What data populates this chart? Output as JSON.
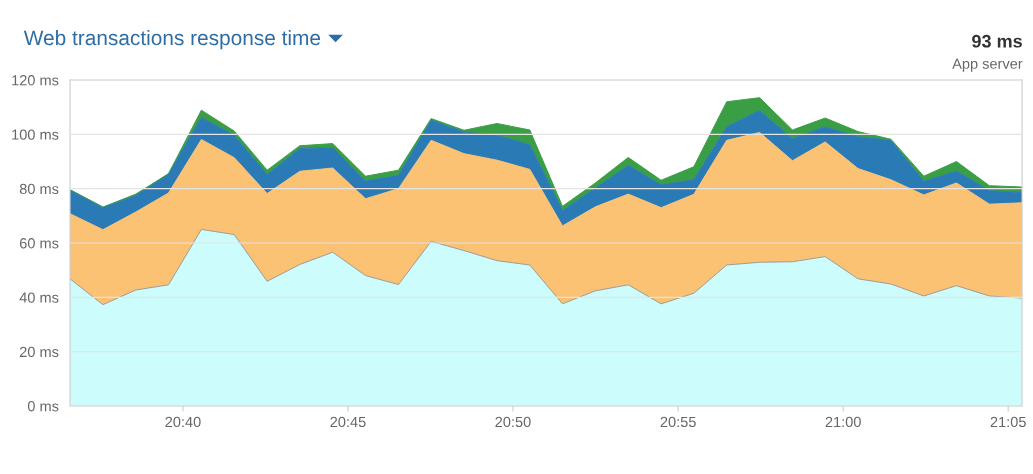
{
  "chart_data": {
    "type": "area",
    "title": "Web transactions response time",
    "stacked": true,
    "grid": "y",
    "legend": false,
    "annotations": [
      "93 ms",
      "App server"
    ],
    "x": [
      20.6097,
      20.6263,
      20.6429,
      20.6594,
      20.676,
      20.6926,
      20.7092,
      20.7257,
      20.7423,
      20.7589,
      20.7755,
      20.792,
      20.8086,
      20.8252,
      20.8418,
      20.8583,
      20.8749,
      20.8915,
      20.9081,
      20.9246,
      20.9412,
      20.9578,
      20.9744,
      20.9909,
      21.0075,
      21.0241,
      21.0407,
      21.0572,
      21.0738,
      21.0903
    ],
    "xlim": [
      20.6097,
      21.0903
    ],
    "xticks": [
      {
        "value": 20.6667,
        "label": "20:40"
      },
      {
        "value": 20.75,
        "label": "20:45"
      },
      {
        "value": 20.8333,
        "label": "20:50"
      },
      {
        "value": 20.9167,
        "label": "20:55"
      },
      {
        "value": 21.0,
        "label": "21:00"
      },
      {
        "value": 21.0833,
        "label": "21:05"
      }
    ],
    "ylim": [
      0,
      120
    ],
    "yticks": [
      {
        "value": 0,
        "label": "0 ms"
      },
      {
        "value": 20,
        "label": "20 ms"
      },
      {
        "value": 40,
        "label": "40 ms"
      },
      {
        "value": 60,
        "label": "60 ms"
      },
      {
        "value": 80,
        "label": "80 ms"
      },
      {
        "value": 100,
        "label": "100 ms"
      },
      {
        "value": 120,
        "label": "120 ms"
      }
    ],
    "series": [
      {
        "color": "#ccfcfc",
        "values": [
          46.8,
          37.3,
          42.7,
          44.6,
          65.0,
          63.1,
          45.9,
          52.1,
          56.6,
          48.0,
          44.7,
          60.6,
          57.2,
          53.5,
          51.9,
          37.6,
          42.4,
          44.6,
          37.6,
          41.5,
          51.9,
          52.9,
          53.1,
          55.0,
          46.8,
          44.9,
          40.5,
          44.3,
          40.5,
          39.7
        ]
      },
      {
        "color": "#fbc274",
        "values": [
          24.0,
          27.6,
          28.7,
          33.8,
          33.1,
          28.3,
          32.3,
          34.3,
          31.0,
          28.3,
          35.3,
          37.2,
          35.7,
          37.0,
          35.2,
          28.7,
          30.9,
          33.4,
          35.4,
          36.4,
          45.9,
          47.8,
          37.2,
          42.2,
          40.6,
          38.4,
          37.2,
          37.8,
          33.8,
          35.1
        ]
      },
      {
        "color": "#2a7ab5",
        "values": [
          8.8,
          8.3,
          6.1,
          7.1,
          8.1,
          8.3,
          7.0,
          8.4,
          7.5,
          6.5,
          4.9,
          7.4,
          8.0,
          9.2,
          9.1,
          5.7,
          6.9,
          10.6,
          8.4,
          5.4,
          5.0,
          8.1,
          8.1,
          5.6,
          11.7,
          14.5,
          5.0,
          4.4,
          5.0,
          3.7
        ]
      },
      {
        "color": "#3a9f44",
        "values": [
          0,
          0,
          0.5,
          0,
          2.7,
          1.5,
          1.6,
          1.0,
          1.5,
          1.8,
          1.9,
          0.6,
          0.6,
          4.3,
          5.4,
          1.5,
          1.9,
          2.9,
          1.7,
          4.8,
          9.2,
          4.7,
          3.2,
          3.2,
          1.9,
          0.4,
          1.9,
          3.5,
          1.8,
          2.1
        ]
      }
    ]
  }
}
